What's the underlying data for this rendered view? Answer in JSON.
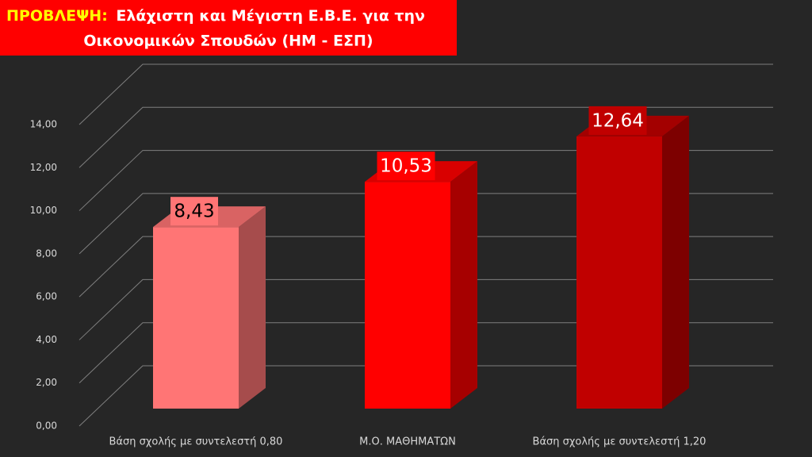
{
  "chart_data": {
    "type": "bar3d",
    "title_label": "ΠΡΟΒΛΕΨΗ:",
    "title": [
      "Ελάχιστη και Μέγιστη Ε.Β.Ε. για την",
      "Οικονομικών Σπουδών (ΗΜ - ΕΣΠ)"
    ],
    "categories": [
      "Βάση σχολής με συντελεστή 0,80",
      "Μ.Ο. ΜΑΘΗΜΑΤΩΝ",
      "Βάση σχολής με συντελεστή 1,20"
    ],
    "values": [
      8.43,
      10.53,
      12.64
    ],
    "value_labels": [
      "8,43",
      "10,53",
      "12,64"
    ],
    "colors": [
      "#ff7575",
      "#ff0000",
      "#c00000"
    ],
    "value_label_colors": [
      "#000000",
      "#ffffff",
      "#ffffff"
    ],
    "ylim": [
      0,
      14
    ],
    "yticks": [
      {
        "value": 0,
        "label": "0,00"
      },
      {
        "value": 2,
        "label": "2,00"
      },
      {
        "value": 4,
        "label": "4,00"
      },
      {
        "value": 6,
        "label": "6,00"
      },
      {
        "value": 8,
        "label": "8,00"
      },
      {
        "value": 10,
        "label": "10,00"
      },
      {
        "value": 12,
        "label": "12,00"
      },
      {
        "value": 14,
        "label": "14,00"
      }
    ],
    "grid": true
  }
}
